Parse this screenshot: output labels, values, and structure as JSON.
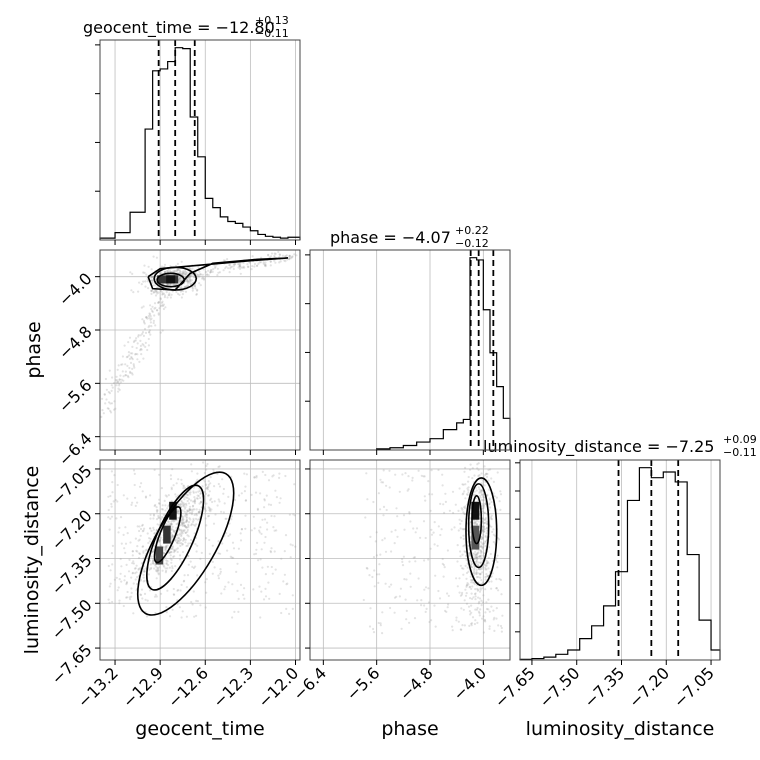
{
  "chart_data": {
    "type": "corner",
    "parameters": [
      "geocent_time",
      "phase",
      "luminosity_distance"
    ],
    "titles": [
      {
        "param": "geocent_time",
        "text": "geocent_time = −12.80",
        "sup": "+0.13",
        "sub": "−0.11"
      },
      {
        "param": "phase",
        "text": "phase = −4.07",
        "sup": "+0.22",
        "sub": "−0.12"
      },
      {
        "param": "luminosity_distance",
        "text": "luminosity_distance = −7.25",
        "sup": "+0.09",
        "sub": "−0.11"
      }
    ],
    "ranges": {
      "geocent_time": [
        -13.3,
        -11.97
      ],
      "phase": [
        -6.6,
        -3.6
      ],
      "luminosity_distance": [
        -7.69,
        -7.02
      ]
    },
    "ticks": {
      "geocent_time": {
        "values": [
          -13.2,
          -12.9,
          -12.6,
          -12.3,
          -12.0
        ],
        "labels": [
          "−13.2",
          "−12.9",
          "−12.6",
          "−12.3",
          "−12.0"
        ]
      },
      "phase": {
        "values": [
          -6.4,
          -5.6,
          -4.8,
          -4.0
        ],
        "labels": [
          "−6.4",
          "−5.6",
          "−4.8",
          "−4.0"
        ]
      },
      "luminosity_distance": {
        "values": [
          -7.65,
          -7.5,
          -7.35,
          -7.2,
          -7.05
        ],
        "labels": [
          "−7.65",
          "−7.50",
          "−7.35",
          "−7.20",
          "−7.05"
        ]
      }
    },
    "quantiles": {
      "geocent_time": [
        -12.91,
        -12.8,
        -12.67
      ],
      "phase": [
        -4.19,
        -4.07,
        -3.85
      ],
      "luminosity_distance": [
        -7.36,
        -7.25,
        -7.16
      ]
    },
    "histograms": {
      "geocent_time": {
        "edges": [
          -13.3,
          -13.2,
          -13.1,
          -13.0,
          -12.95,
          -12.9,
          -12.85,
          -12.8,
          -12.75,
          -12.7,
          -12.65,
          -12.6,
          -12.55,
          -12.5,
          -12.45,
          -12.4,
          -12.35,
          -12.3,
          -12.25,
          -12.2,
          -12.15,
          -12.1,
          -12.05,
          -12.0,
          -11.97
        ],
        "counts": [
          2,
          8,
          30,
          120,
          183,
          185,
          193,
          208,
          207,
          133,
          90,
          45,
          35,
          25,
          20,
          18,
          14,
          10,
          6,
          4,
          3,
          2,
          3,
          3
        ]
      },
      "phase": {
        "edges": [
          -5.6,
          -5.4,
          -5.2,
          -5.0,
          -4.8,
          -4.6,
          -4.4,
          -4.3,
          -4.2,
          -4.1,
          -4.0,
          -3.9,
          -3.8,
          -3.7,
          -3.6
        ],
        "counts": [
          1,
          2,
          4,
          7,
          10,
          18,
          24,
          27,
          170,
          168,
          124,
          86,
          56,
          28
        ]
      },
      "luminosity_distance": {
        "edges": [
          -7.69,
          -7.65,
          -7.61,
          -7.57,
          -7.53,
          -7.49,
          -7.45,
          -7.41,
          -7.37,
          -7.33,
          -7.29,
          -7.25,
          -7.21,
          -7.17,
          -7.13,
          -7.09,
          -7.05,
          -7.02
        ],
        "counts": [
          0.5,
          1,
          2,
          4,
          7,
          15,
          24,
          38,
          62,
          112,
          135,
          128,
          132,
          125,
          74,
          28,
          7
        ]
      }
    },
    "labels": {
      "x": [
        "geocent_time",
        "phase",
        "luminosity_distance"
      ],
      "y": [
        "phase",
        "luminosity_distance"
      ]
    }
  }
}
